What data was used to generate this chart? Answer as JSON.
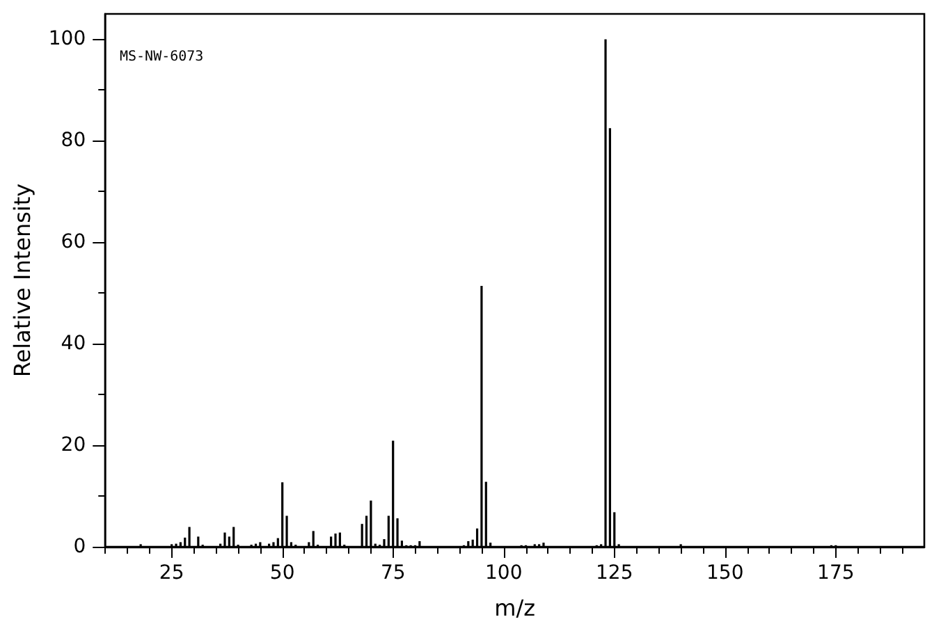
{
  "chart_data": {
    "type": "bar",
    "xlabel": "m/z",
    "ylabel": "Relative Intensity",
    "annotations": [
      "MS-NW-6073"
    ],
    "x": [
      18,
      25,
      26,
      27,
      28,
      29,
      31,
      32,
      36,
      37,
      38,
      39,
      40,
      43,
      44,
      45,
      47,
      48,
      49,
      50,
      51,
      52,
      53,
      56,
      57,
      58,
      61,
      62,
      63,
      64,
      68,
      69,
      70,
      71,
      72,
      73,
      74,
      75,
      76,
      77,
      78,
      79,
      80,
      81,
      91,
      92,
      93,
      94,
      95,
      96,
      97,
      104,
      105,
      107,
      108,
      109,
      121,
      122,
      123,
      124,
      125,
      126,
      140,
      174,
      175
    ],
    "values": [
      0.5,
      0.5,
      0.6,
      0.9,
      1.8,
      3.9,
      2.0,
      0.4,
      0.6,
      2.8,
      2.0,
      3.9,
      0.4,
      0.4,
      0.6,
      0.9,
      0.6,
      0.9,
      1.7,
      12.7,
      6.1,
      0.9,
      0.4,
      0.9,
      3.1,
      0.4,
      2.0,
      2.6,
      2.8,
      0.4,
      4.5,
      6.1,
      9.1,
      0.6,
      0.4,
      1.5,
      6.1,
      20.9,
      5.6,
      1.2,
      0.3,
      0.3,
      0.3,
      1.1,
      0.3,
      1.1,
      1.4,
      3.6,
      51.4,
      12.8,
      0.8,
      0.3,
      0.3,
      0.5,
      0.5,
      0.8,
      0.3,
      0.5,
      100,
      82.5,
      6.8,
      0.5,
      0.5,
      0.3,
      0.3
    ],
    "color": "#000000",
    "xlim": [
      10,
      195
    ],
    "xticks": [
      {
        "value": 10,
        "label": null
      },
      {
        "value": 15,
        "label": null
      },
      {
        "value": 20,
        "label": null
      },
      25,
      {
        "value": 30,
        "label": null
      },
      {
        "value": 35,
        "label": null
      },
      {
        "value": 40,
        "label": null
      },
      {
        "value": 45,
        "label": null
      },
      50,
      {
        "value": 55,
        "label": null
      },
      {
        "value": 60,
        "label": null
      },
      {
        "value": 65,
        "label": null
      },
      {
        "value": 70,
        "label": null
      },
      75,
      {
        "value": 80,
        "label": null
      },
      {
        "value": 85,
        "label": null
      },
      {
        "value": 90,
        "label": null
      },
      {
        "value": 95,
        "label": null
      },
      100,
      {
        "value": 105,
        "label": null
      },
      {
        "value": 110,
        "label": null
      },
      {
        "value": 115,
        "label": null
      },
      {
        "value": 120,
        "label": null
      },
      125,
      {
        "value": 130,
        "label": null
      },
      {
        "value": 135,
        "label": null
      },
      {
        "value": 140,
        "label": null
      },
      {
        "value": 145,
        "label": null
      },
      150,
      {
        "value": 155,
        "label": null
      },
      {
        "value": 160,
        "label": null
      },
      {
        "value": 165,
        "label": null
      },
      {
        "value": 170,
        "label": null
      },
      175,
      {
        "value": 180,
        "label": null
      },
      {
        "value": 185,
        "label": null
      },
      {
        "value": 190,
        "label": null
      }
    ],
    "ylim": [
      0,
      105
    ],
    "yticks": [
      0,
      {
        "value": 10,
        "label": null
      },
      20,
      {
        "value": 30,
        "label": null
      },
      40,
      {
        "value": 50,
        "label": null
      },
      60,
      {
        "value": 70,
        "label": null
      },
      80,
      {
        "value": 90,
        "label": null
      },
      100
    ],
    "grid": false
  }
}
